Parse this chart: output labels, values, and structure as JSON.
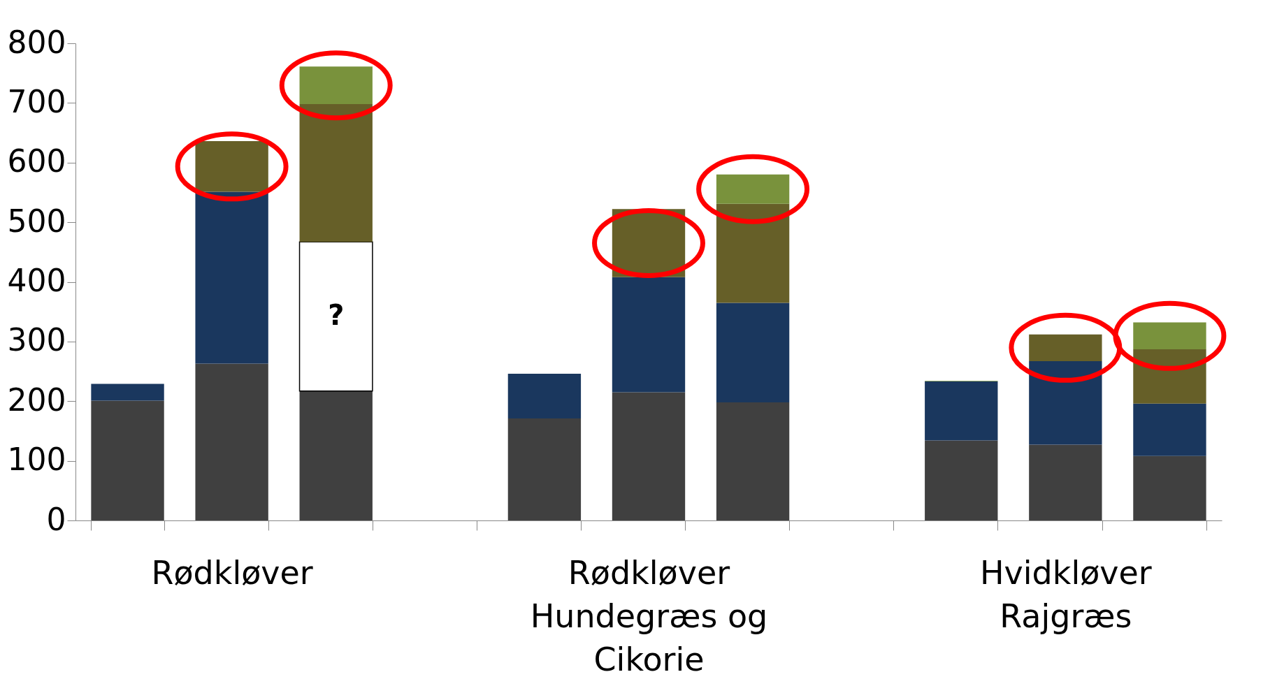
{
  "chart_data": {
    "type": "bar",
    "stacked": true,
    "categories": [
      null,
      "Rødkløver",
      null,
      null,
      null,
      "Rødkløver\nHundegræs og\nCikorie",
      null,
      null,
      null,
      "Hvidkløver\nRajgræs",
      null
    ],
    "series": [
      {
        "color": "#404040",
        "values": [
          201,
          263,
          217,
          null,
          171,
          215,
          198,
          null,
          134,
          127,
          108
        ]
      },
      {
        "color": "#1a375e",
        "values": [
          28,
          288,
          null,
          null,
          75,
          193,
          167,
          null,
          99,
          140,
          88
        ]
      },
      {
        "color": "#ffffff",
        "values": [
          null,
          null,
          250,
          null,
          null,
          null,
          null,
          null,
          null,
          null,
          null
        ]
      },
      {
        "color": "#665f28",
        "values": [
          null,
          85,
          231,
          null,
          null,
          114,
          166,
          null,
          null,
          45,
          91
        ]
      },
      {
        "color": "#79923c",
        "values": [
          null,
          null,
          63,
          null,
          null,
          null,
          49,
          null,
          1,
          null,
          45
        ]
      }
    ],
    "annotations": [
      "?"
    ],
    "ylim": [
      0,
      800
    ],
    "yticks": [
      0,
      100,
      200,
      300,
      400,
      500,
      600,
      700,
      800
    ],
    "grid": false,
    "legend": false
  }
}
